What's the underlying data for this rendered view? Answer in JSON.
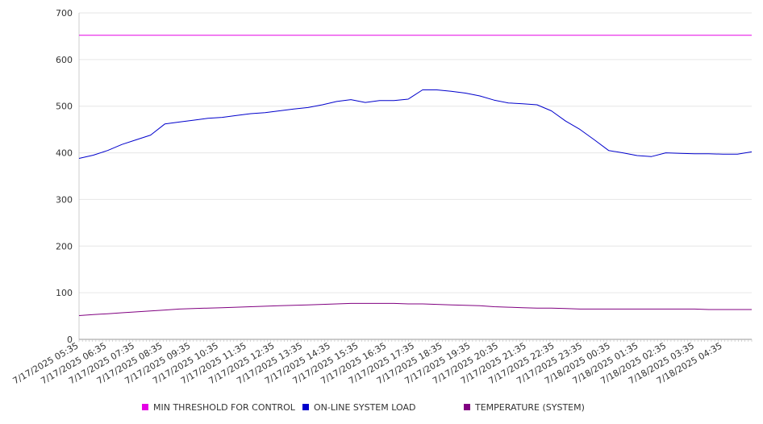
{
  "chart_data": {
    "type": "line",
    "title": "",
    "xlabel": "",
    "ylabel": "",
    "ylim": [
      0,
      700
    ],
    "yticks": [
      0,
      100,
      200,
      300,
      400,
      500,
      600,
      700
    ],
    "grid": "horizontal",
    "legend": "bottom",
    "x_tick_labels": [
      "7/17/2025 05:35",
      "7/17/2025 06:35",
      "7/17/2025 07:35",
      "7/17/2025 08:35",
      "7/17/2025 09:35",
      "7/17/2025 10:35",
      "7/17/2025 11:35",
      "7/17/2025 12:35",
      "7/17/2025 13:35",
      "7/17/2025 14:35",
      "7/17/2025 15:35",
      "7/17/2025 16:35",
      "7/17/2025 17:35",
      "7/17/2025 18:35",
      "7/17/2025 19:35",
      "7/17/2025 20:35",
      "7/17/2025 21:35",
      "7/17/2025 22:35",
      "7/17/2025 23:35",
      "7/18/2025 00:35",
      "7/18/2025 01:35",
      "7/18/2025 02:35",
      "7/18/2025 03:35",
      "7/18/2025 04:35"
    ],
    "x": [
      "05:35",
      "06:00",
      "06:35",
      "07:00",
      "07:35",
      "08:00",
      "08:35",
      "09:00",
      "09:35",
      "10:00",
      "10:35",
      "11:00",
      "11:35",
      "12:00",
      "12:35",
      "13:00",
      "13:35",
      "14:00",
      "14:35",
      "15:00",
      "15:35",
      "16:00",
      "16:35",
      "17:00",
      "17:35",
      "18:00",
      "18:35",
      "19:00",
      "19:35",
      "20:00",
      "20:35",
      "21:00",
      "21:35",
      "22:00",
      "22:35",
      "23:00",
      "23:35",
      "00:00",
      "00:35",
      "01:00",
      "01:35",
      "02:00",
      "02:35",
      "03:00",
      "03:35",
      "04:00",
      "04:35",
      "05:00"
    ],
    "series": [
      {
        "name": "MIN THRESHOLD FOR CONTROL",
        "color": "#e500e5",
        "values": [
          652,
          652,
          652,
          652,
          652,
          652,
          652,
          652,
          652,
          652,
          652,
          652,
          652,
          652,
          652,
          652,
          652,
          652,
          652,
          652,
          652,
          652,
          652,
          652,
          652,
          652,
          652,
          652,
          652,
          652,
          652,
          652,
          652,
          652,
          652,
          652,
          652,
          652,
          652,
          652,
          652,
          652,
          652,
          652,
          652,
          652,
          652,
          652
        ]
      },
      {
        "name": "ON-LINE SYSTEM LOAD",
        "color": "#0000cc",
        "values": [
          388,
          395,
          405,
          418,
          428,
          438,
          462,
          466,
          470,
          474,
          476,
          480,
          484,
          486,
          490,
          494,
          497,
          503,
          510,
          514,
          508,
          512,
          512,
          515,
          535,
          535,
          532,
          528,
          522,
          513,
          507,
          505,
          503,
          490,
          468,
          450,
          428,
          405,
          400,
          394,
          392,
          400,
          399,
          398,
          398,
          397,
          397,
          402
        ]
      },
      {
        "name": "TEMPERATURE (SYSTEM)",
        "color": "#800080",
        "values": [
          51,
          53,
          55,
          57,
          59,
          61,
          63,
          65,
          66,
          67,
          68,
          69,
          70,
          71,
          72,
          73,
          74,
          75,
          76,
          77,
          77,
          77,
          77,
          76,
          76,
          75,
          74,
          73,
          72,
          70,
          69,
          68,
          67,
          67,
          66,
          65,
          65,
          65,
          65,
          65,
          65,
          65,
          65,
          65,
          64,
          64,
          64,
          64
        ]
      }
    ]
  },
  "legend": {
    "items": [
      {
        "label": "MIN THRESHOLD FOR CONTROL",
        "color": "#e500e5"
      },
      {
        "label": "ON-LINE SYSTEM LOAD",
        "color": "#0000cc"
      },
      {
        "label": "TEMPERATURE (SYSTEM)",
        "color": "#800080"
      }
    ]
  }
}
